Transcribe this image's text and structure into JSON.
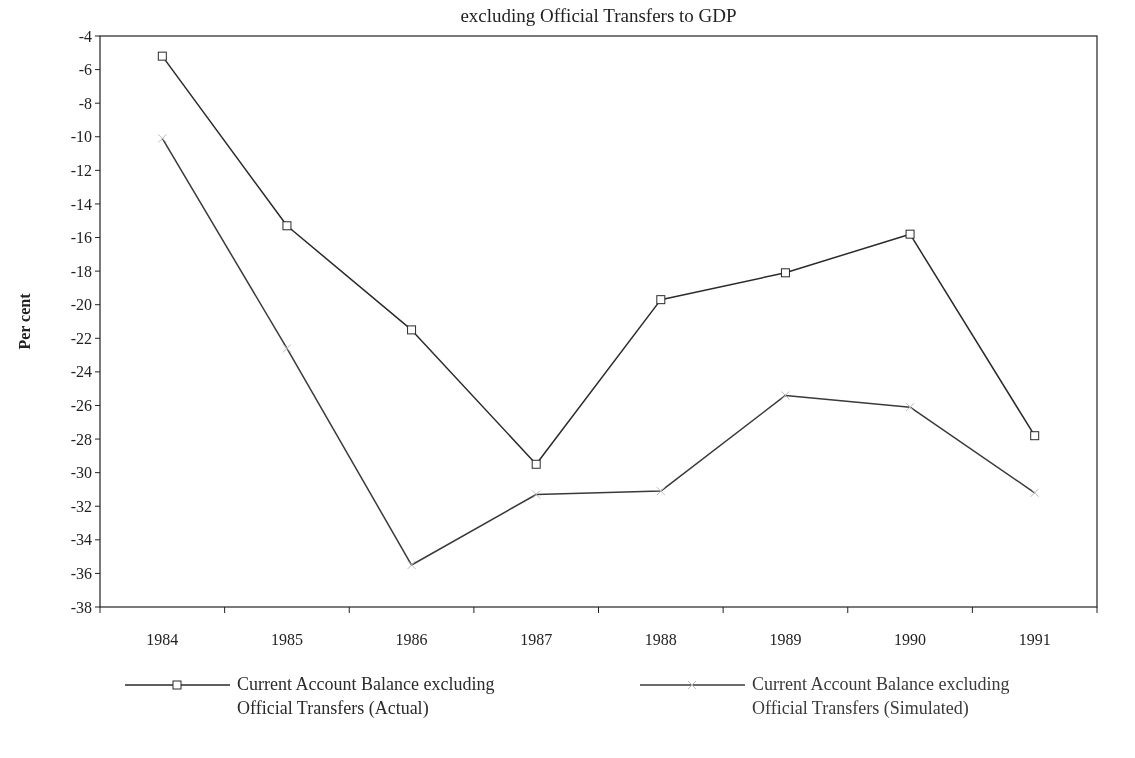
{
  "chart_data": {
    "type": "line",
    "title": "excluding Official Transfers to GDP",
    "ylabel": "Per cent",
    "categories": [
      "1984",
      "1985",
      "1986",
      "1987",
      "1988",
      "1989",
      "1990",
      "1991"
    ],
    "ylim": [
      -38,
      -4
    ],
    "yticks": [
      -4,
      -6,
      -8,
      -10,
      -12,
      -14,
      -16,
      -18,
      -20,
      -22,
      -24,
      -26,
      -28,
      -30,
      -32,
      -34,
      -36,
      -38
    ],
    "legend": "bottom",
    "series": [
      {
        "name": "Current Account Balance excluding Official Transfers (Actual)",
        "color": "#2a2a2a",
        "marker": "square",
        "values": [
          -5.2,
          -15.3,
          -21.5,
          -29.5,
          -19.7,
          -18.1,
          -15.8,
          -27.8
        ]
      },
      {
        "name": "Current Account Balance excluding Official Transfers (Simulated)",
        "color": "#3a3a3a",
        "marker": "cross",
        "values": [
          -10.1,
          -22.6,
          -35.5,
          -31.3,
          -31.1,
          -25.4,
          -26.1,
          -31.2
        ]
      }
    ]
  }
}
